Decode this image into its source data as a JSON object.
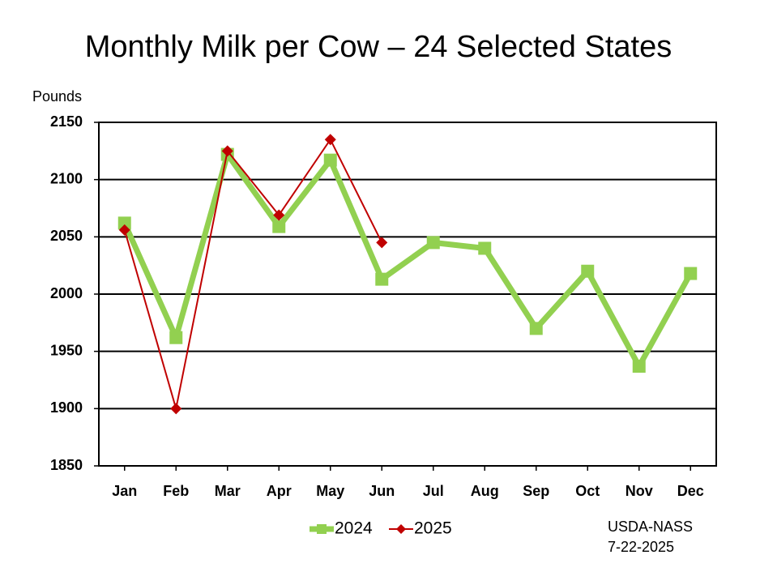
{
  "chart_data": {
    "type": "line",
    "title": "Monthly Milk per Cow – 24 Selected States",
    "y_label": "Pounds",
    "source": [
      "USDA-NASS",
      "7-22-2025"
    ],
    "categories": [
      "Jan",
      "Feb",
      "Mar",
      "Apr",
      "May",
      "Jun",
      "Jul",
      "Aug",
      "Sep",
      "Oct",
      "Nov",
      "Dec"
    ],
    "series": [
      {
        "name": "2024",
        "color": "#92d050",
        "values": [
          2062,
          1962,
          2122,
          2059,
          2117,
          2013,
          2045,
          2040,
          1970,
          2020,
          1937,
          2018
        ]
      },
      {
        "name": "2025",
        "color": "#c00000",
        "values": [
          2056,
          1900,
          2125,
          2069,
          2135,
          2045,
          null,
          null,
          null,
          null,
          null,
          null
        ]
      }
    ],
    "ylim": [
      1850,
      2150
    ],
    "yticks": [
      1850,
      1900,
      1950,
      2000,
      2050,
      2100,
      2150
    ],
    "grid": true
  }
}
